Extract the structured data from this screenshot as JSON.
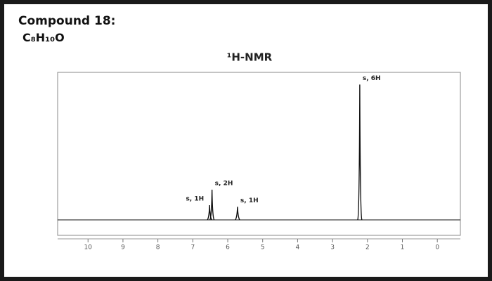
{
  "header": {
    "title": "Compound 18:",
    "formula": "C₈H₁₀O"
  },
  "chart_data": {
    "type": "nmr",
    "title": "¹H-NMR",
    "x": [
      6.52,
      6.45,
      5.72,
      2.22
    ],
    "values": [
      9,
      18.5,
      8,
      83
    ],
    "peak_labels": [
      "s, 1H",
      "s, 2H",
      "s, 1H",
      "s, 6H"
    ],
    "color": "#111111",
    "xlim": [
      10.87,
      -0.66
    ],
    "xticks": [
      10,
      9,
      8,
      7,
      6,
      5,
      4,
      3,
      2,
      1,
      0
    ],
    "ylim": [
      -9.5,
      90.5
    ]
  }
}
